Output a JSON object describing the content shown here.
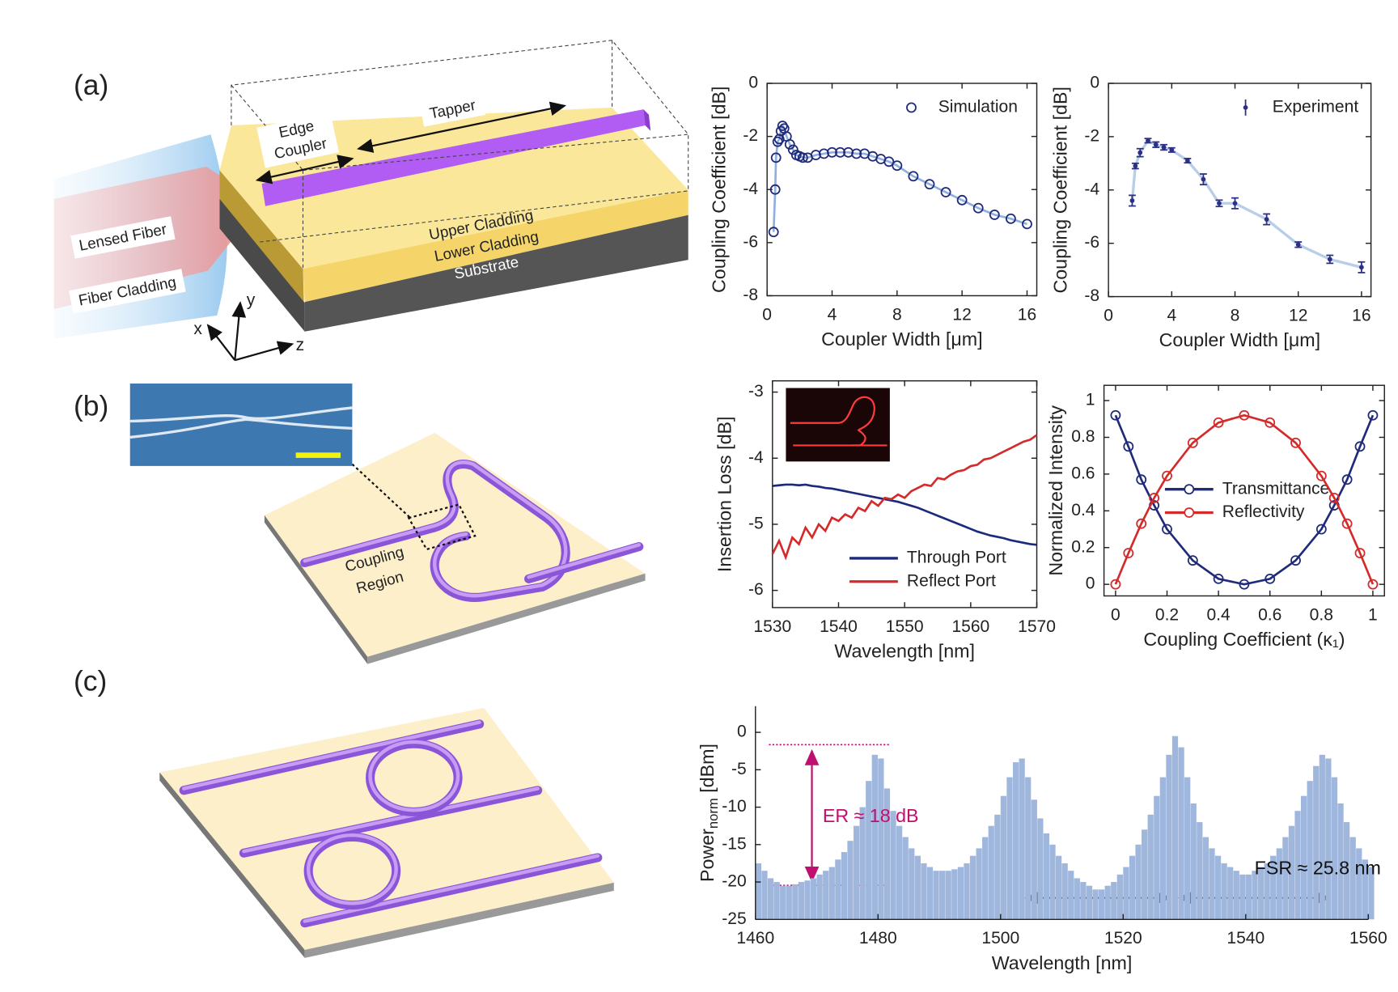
{
  "panels": {
    "a": {
      "label": "(a)",
      "edge_coupler": [
        "Edge",
        "Coupler"
      ],
      "tapper": "Tapper",
      "lensed_fiber": "Lensed Fiber",
      "fiber_cladding": "Fiber Cladding",
      "upper_cladding": "Upper Cladding",
      "lower_cladding": "Lower Cladding",
      "substrate": "Substrate",
      "axes": [
        "x",
        "y",
        "z"
      ]
    },
    "b": {
      "label": "(b)",
      "coupling_region": [
        "Coupling",
        "Region"
      ]
    },
    "c": {
      "label": "(c)"
    }
  },
  "chart_data": [
    {
      "type": "line",
      "xlabel": "Coupler Width [μm]",
      "ylabel": "Coupling Coefficient [dB]",
      "xlim": [
        0,
        16.6
      ],
      "ylim": [
        -8,
        0
      ],
      "xticks": [
        0,
        4,
        8,
        12,
        16
      ],
      "yticks": [
        0,
        -2,
        -4,
        -6,
        -8
      ],
      "box": true,
      "legend": "upper right",
      "legend_line": false,
      "x": [
        0.4,
        0.5,
        0.55,
        0.65,
        0.75,
        0.85,
        0.95,
        1.05,
        1.2,
        1.4,
        1.6,
        1.8,
        2.0,
        2.2,
        2.5,
        3.0,
        3.5,
        4.0,
        4.5,
        5.0,
        5.5,
        6.0,
        6.5,
        7.0,
        7.5,
        8.0,
        9.0,
        10.0,
        11.0,
        12.0,
        13.0,
        14.0,
        15.0,
        16.0
      ],
      "series": [
        {
          "name": "Simulation",
          "color": "#1f2a7a",
          "line_color": "#8fb0dc",
          "marker": "open-circle",
          "values": [
            -5.6,
            -4.0,
            -2.8,
            -2.2,
            -2.1,
            -1.8,
            -1.6,
            -1.7,
            -2.0,
            -2.3,
            -2.5,
            -2.7,
            -2.75,
            -2.8,
            -2.8,
            -2.7,
            -2.65,
            -2.6,
            -2.6,
            -2.6,
            -2.65,
            -2.65,
            -2.75,
            -2.85,
            -2.95,
            -3.1,
            -3.5,
            -3.8,
            -4.1,
            -4.4,
            -4.7,
            -4.95,
            -5.1,
            -5.3
          ]
        }
      ]
    },
    {
      "type": "errorbar",
      "xlabel": "Coupler Width [μm]",
      "ylabel": "Coupling Coefficient [dB]",
      "xlim": [
        0,
        16.6
      ],
      "ylim": [
        -8,
        0
      ],
      "xticks": [
        0,
        4,
        8,
        12,
        16
      ],
      "yticks": [
        0,
        -2,
        -4,
        -6,
        -8
      ],
      "box": true,
      "legend": "upper right",
      "legend_line": false,
      "x": [
        1.5,
        1.7,
        2.0,
        2.5,
        3.0,
        3.5,
        4.0,
        5.0,
        6.0,
        7.0,
        8.0,
        10.0,
        12.0,
        14.0,
        16.0
      ],
      "series": [
        {
          "name": "Experiment",
          "color": "#2b2f86",
          "line_color": "#b8cde8",
          "values": [
            -4.4,
            -3.1,
            -2.6,
            -2.15,
            -2.3,
            -2.4,
            -2.5,
            -2.9,
            -3.6,
            -4.5,
            -4.5,
            -5.1,
            -6.05,
            -6.6,
            -6.9
          ],
          "errors": [
            0.2,
            0.1,
            0.15,
            0.08,
            0.1,
            0.1,
            0.08,
            0.08,
            0.2,
            0.12,
            0.2,
            0.2,
            0.1,
            0.15,
            0.2
          ]
        }
      ]
    },
    {
      "type": "line",
      "xlabel": "Wavelength [nm]",
      "ylabel": "Insertion Loss [dB]",
      "xlim": [
        1530,
        1570
      ],
      "ylim": [
        -6.26,
        -2.83
      ],
      "xticks": [
        1530,
        1540,
        1550,
        1560,
        1570
      ],
      "yticks": [
        -3,
        -4,
        -5,
        -6
      ],
      "box": true,
      "legend": "lower right",
      "legend_line": true,
      "x": [
        1530,
        1531,
        1532,
        1533,
        1534,
        1535,
        1536,
        1537,
        1538,
        1539,
        1540,
        1541,
        1542,
        1543,
        1544,
        1545,
        1546,
        1547,
        1548,
        1549,
        1550,
        1551,
        1552,
        1553,
        1554,
        1555,
        1556,
        1557,
        1558,
        1559,
        1560,
        1561,
        1562,
        1563,
        1564,
        1565,
        1566,
        1567,
        1568,
        1569,
        1570
      ],
      "series": [
        {
          "name": "Through Port",
          "color": "#1b2a7b",
          "values": [
            -4.42,
            -4.41,
            -4.4,
            -4.4,
            -4.41,
            -4.4,
            -4.42,
            -4.43,
            -4.45,
            -4.46,
            -4.48,
            -4.5,
            -4.52,
            -4.54,
            -4.56,
            -4.58,
            -4.6,
            -4.62,
            -4.64,
            -4.66,
            -4.69,
            -4.72,
            -4.75,
            -4.79,
            -4.83,
            -4.87,
            -4.91,
            -4.95,
            -4.99,
            -5.03,
            -5.07,
            -5.11,
            -5.14,
            -5.17,
            -5.19,
            -5.21,
            -5.24,
            -5.26,
            -5.28,
            -5.3,
            -5.31
          ]
        },
        {
          "name": "Reflect Port",
          "color": "#d42a2a",
          "values": [
            -5.45,
            -5.25,
            -5.5,
            -5.2,
            -5.3,
            -5.05,
            -5.2,
            -5.0,
            -5.1,
            -4.9,
            -4.95,
            -4.85,
            -4.9,
            -4.75,
            -4.8,
            -4.65,
            -4.72,
            -4.6,
            -4.62,
            -4.55,
            -4.6,
            -4.5,
            -4.45,
            -4.4,
            -4.42,
            -4.3,
            -4.32,
            -4.25,
            -4.2,
            -4.18,
            -4.12,
            -4.1,
            -4.02,
            -4.0,
            -3.95,
            -3.9,
            -3.85,
            -3.8,
            -3.75,
            -3.72,
            -3.65
          ]
        }
      ]
    },
    {
      "type": "line",
      "xlabel": "Coupling Coefficient (κ₁)",
      "ylabel": "Normalized Intensity",
      "xlim": [
        -0.045,
        1.045
      ],
      "ylim": [
        -0.063,
        1.083
      ],
      "xticks": [
        0,
        0.2,
        0.4,
        0.6,
        0.8,
        1
      ],
      "yticks": [
        0,
        0.2,
        0.4,
        0.6,
        0.8,
        1
      ],
      "box": true,
      "legend": "center",
      "legend_line": true,
      "x": [
        0,
        0.05,
        0.1,
        0.15,
        0.2,
        0.3,
        0.4,
        0.5,
        0.6,
        0.7,
        0.8,
        0.85,
        0.9,
        0.95,
        1
      ],
      "series": [
        {
          "name": "Transmittance",
          "color": "#1f2a7a",
          "marker": "open-circle",
          "values": [
            0.92,
            0.75,
            0.57,
            0.43,
            0.3,
            0.13,
            0.03,
            0,
            0.03,
            0.13,
            0.3,
            0.43,
            0.57,
            0.75,
            0.92
          ]
        },
        {
          "name": "Reflectivity",
          "color": "#d42a2a",
          "marker": "open-circle",
          "values": [
            0,
            0.17,
            0.33,
            0.47,
            0.59,
            0.77,
            0.88,
            0.92,
            0.88,
            0.77,
            0.59,
            0.47,
            0.33,
            0.17,
            0
          ]
        }
      ]
    },
    {
      "type": "bar",
      "xlabel": "Wavelength [nm]",
      "ylabel": "Power",
      "ylabel_sub": "norm",
      "ylabel_suffix": " [dBm]",
      "xlim": [
        1460,
        1560
      ],
      "ylim": [
        -25,
        3.5
      ],
      "xticks": [
        1460,
        1480,
        1500,
        1520,
        1540,
        1560
      ],
      "yticks": [
        0,
        -5,
        -10,
        -15,
        -20,
        -25
      ],
      "box": false,
      "color": "#9fb6dd",
      "annotations": [
        {
          "text": "ER ≈ 18 dB",
          "color": "#c0106f"
        },
        {
          "text": "FSR ≈ 25.8 nm",
          "color": "#111111"
        }
      ],
      "x": [
        1460,
        1461,
        1462,
        1463,
        1464,
        1465,
        1466,
        1467,
        1468,
        1469,
        1470,
        1471,
        1472,
        1473,
        1474,
        1475,
        1476,
        1477,
        1478,
        1479,
        1480,
        1481,
        1482,
        1483,
        1484,
        1485,
        1486,
        1487,
        1488,
        1489,
        1490,
        1491,
        1492,
        1493,
        1494,
        1495,
        1496,
        1497,
        1498,
        1499,
        1500,
        1501,
        1502,
        1503,
        1504,
        1505,
        1506,
        1507,
        1508,
        1509,
        1510,
        1511,
        1512,
        1513,
        1514,
        1515,
        1516,
        1517,
        1518,
        1519,
        1520,
        1521,
        1522,
        1523,
        1524,
        1525,
        1526,
        1527,
        1528,
        1529,
        1530,
        1531,
        1532,
        1533,
        1534,
        1535,
        1536,
        1537,
        1538,
        1539,
        1540,
        1541,
        1542,
        1543,
        1544,
        1545,
        1546,
        1547,
        1548,
        1549,
        1550,
        1551,
        1552,
        1553,
        1554,
        1555,
        1556,
        1557,
        1558,
        1559,
        1560
      ],
      "values": [
        -17.5,
        -18.5,
        -19.5,
        -20,
        -20.5,
        -20.5,
        -20.3,
        -20,
        -19.8,
        -19.5,
        -19,
        -18.5,
        -18,
        -17,
        -16,
        -14.5,
        -12.5,
        -10,
        -6.5,
        -3,
        -3.5,
        -7.5,
        -10.5,
        -12.5,
        -14,
        -15.5,
        -16.5,
        -17.5,
        -18,
        -18.5,
        -18.5,
        -18.5,
        -18.3,
        -18,
        -17.5,
        -16.5,
        -15.5,
        -14,
        -12.5,
        -11,
        -8.5,
        -6,
        -4,
        -3.5,
        -6,
        -9,
        -11.5,
        -13.5,
        -15,
        -16.5,
        -17.5,
        -18.5,
        -19.5,
        -20,
        -20.5,
        -21,
        -21,
        -20.5,
        -20,
        -19,
        -18,
        -16.5,
        -15,
        -13,
        -11,
        -8.5,
        -6,
        -3,
        -0.5,
        -2,
        -6,
        -9.5,
        -12,
        -14,
        -15.5,
        -16.5,
        -17.5,
        -18,
        -18.5,
        -19,
        -19,
        -18.5,
        -18,
        -17.5,
        -16.5,
        -15.5,
        -14,
        -12.5,
        -10.5,
        -8.5,
        -6.5,
        -4.5,
        -3,
        -3.5,
        -6,
        -9.5,
        -12,
        -14,
        -15.5,
        -17,
        -18
      ]
    }
  ]
}
